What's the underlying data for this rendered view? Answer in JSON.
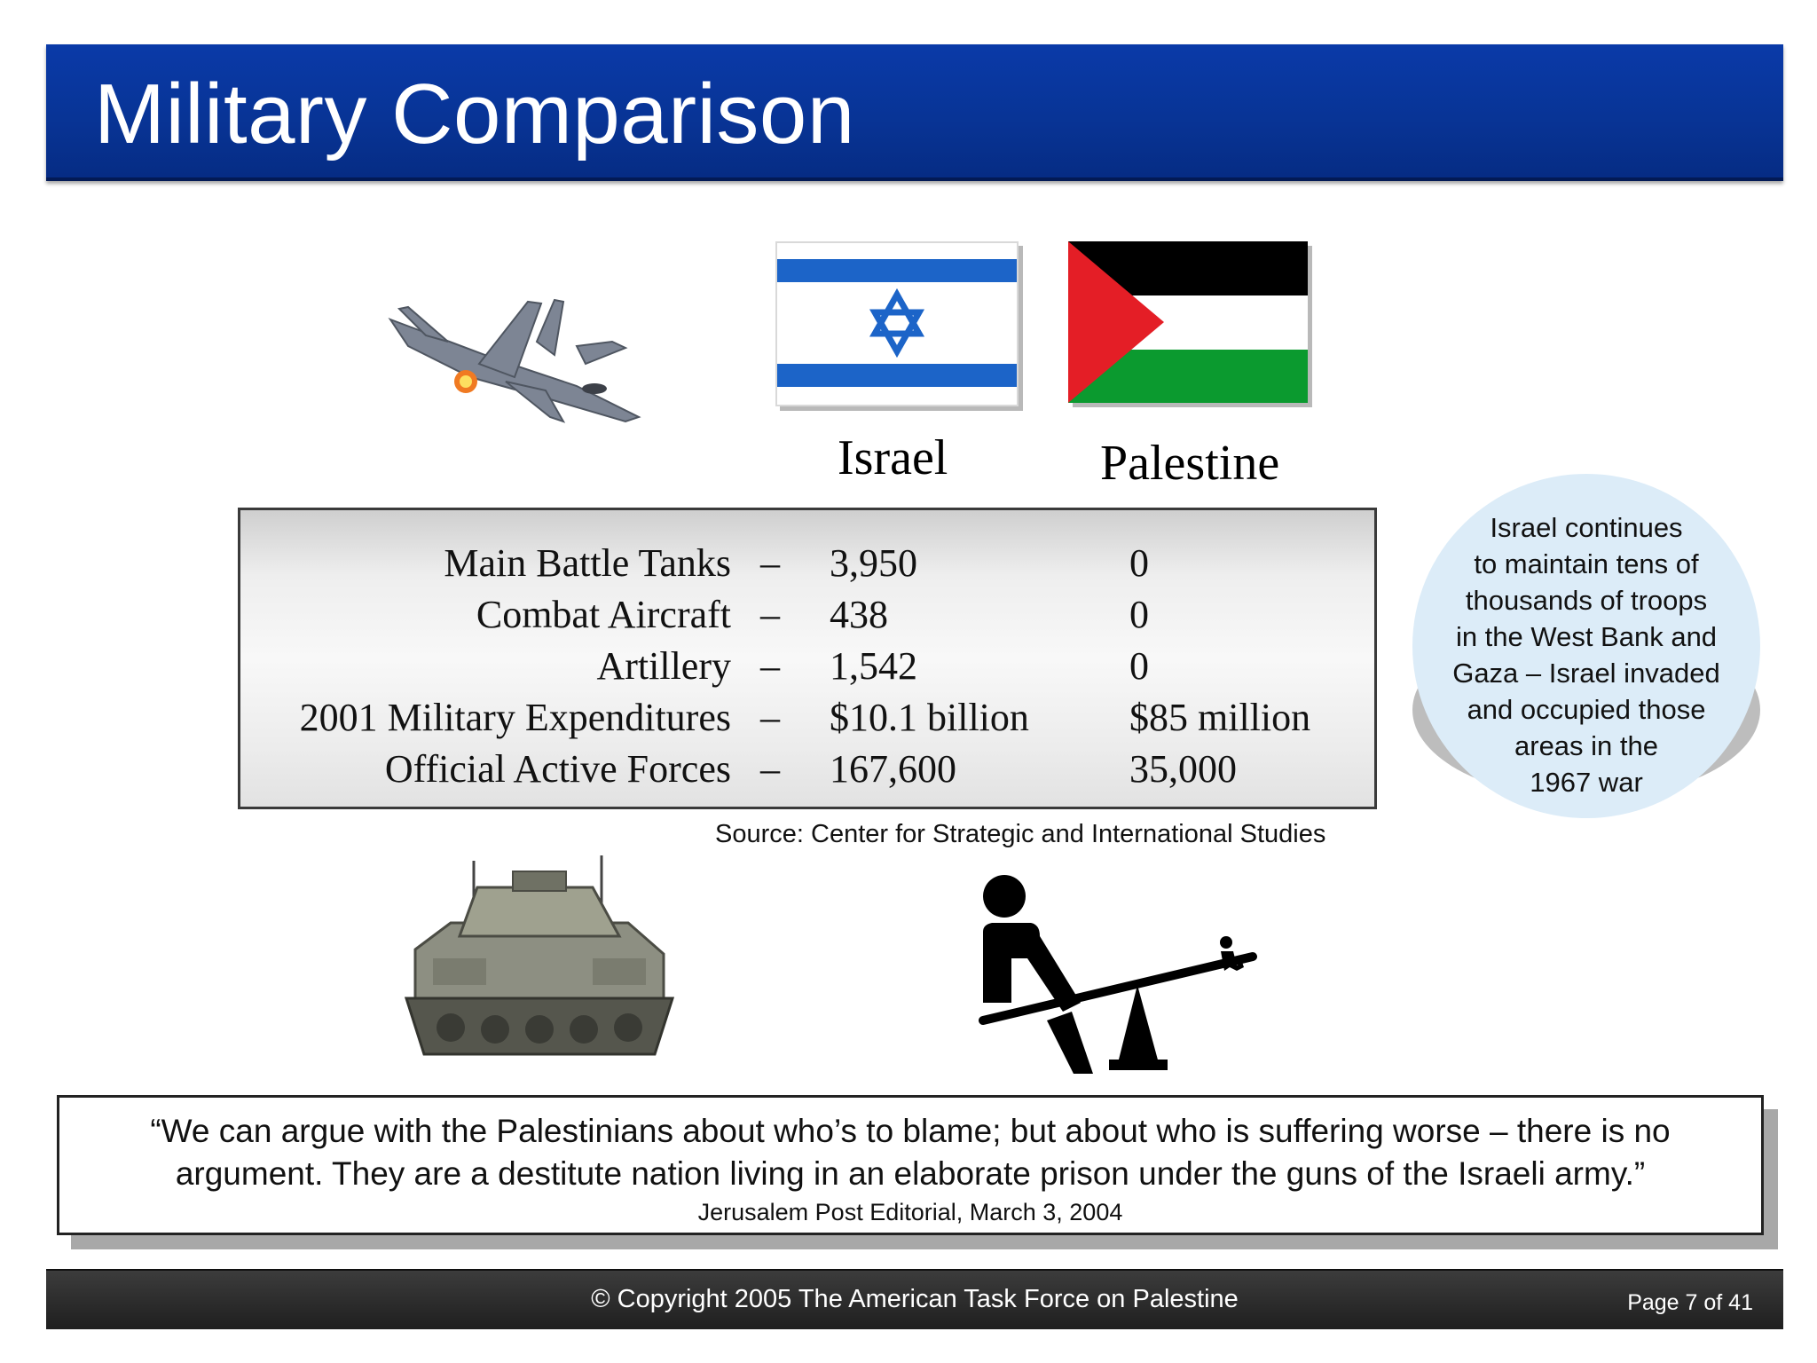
{
  "slide": {
    "title": "Military Comparison"
  },
  "columns": {
    "israel": "Israel",
    "palestine": "Palestine"
  },
  "table": {
    "rows": [
      {
        "label": "Main Battle Tanks",
        "dash": "–",
        "israel": "3,950",
        "palestine": "0"
      },
      {
        "label": "Combat Aircraft",
        "dash": "–",
        "israel": "438",
        "palestine": "0"
      },
      {
        "label": "Artillery",
        "dash": "–",
        "israel": "1,542",
        "palestine": "0"
      },
      {
        "label": "2001 Military Expenditures",
        "dash": "–",
        "israel": "$10.1 billion",
        "palestine": "$85 million"
      },
      {
        "label": "Official Active Forces",
        "dash": "–",
        "israel": "167,600",
        "palestine": "35,000"
      }
    ],
    "source": "Source: Center for Strategic and International Studies"
  },
  "callout": {
    "lines": [
      "Israel continues",
      "to maintain tens of",
      "thousands of troops",
      "in the West Bank and",
      "Gaza – Israel invaded",
      "and occupied those",
      "areas in the",
      "1967 war"
    ]
  },
  "quote": {
    "line1": "“We can argue with the Palestinians about who’s to blame; but about who is suffering worse – there is no",
    "line2": "argument. They are a destitute nation living in an elaborate prison under the guns of the Israeli army.”",
    "attribution": "Jerusalem Post Editorial, March 3, 2004"
  },
  "footer": {
    "copyright": "© Copyright 2005 The American Task Force on Palestine",
    "page": "Page 7 of 41"
  },
  "images": {
    "jet": "fighter-jet-image",
    "tank": "battle-tank-image",
    "seesaw": "unbalanced-seesaw-pictogram",
    "israel_flag": "israel-flag",
    "palestine_flag": "palestine-flag"
  },
  "colors": {
    "title_bar": "#083496",
    "callout_bubble": "#dcecf8",
    "footer_bar": "#2a2a2a",
    "palestine_red": "#e41e26",
    "palestine_green": "#0b9a2f",
    "israel_blue": "#1c64c8"
  }
}
